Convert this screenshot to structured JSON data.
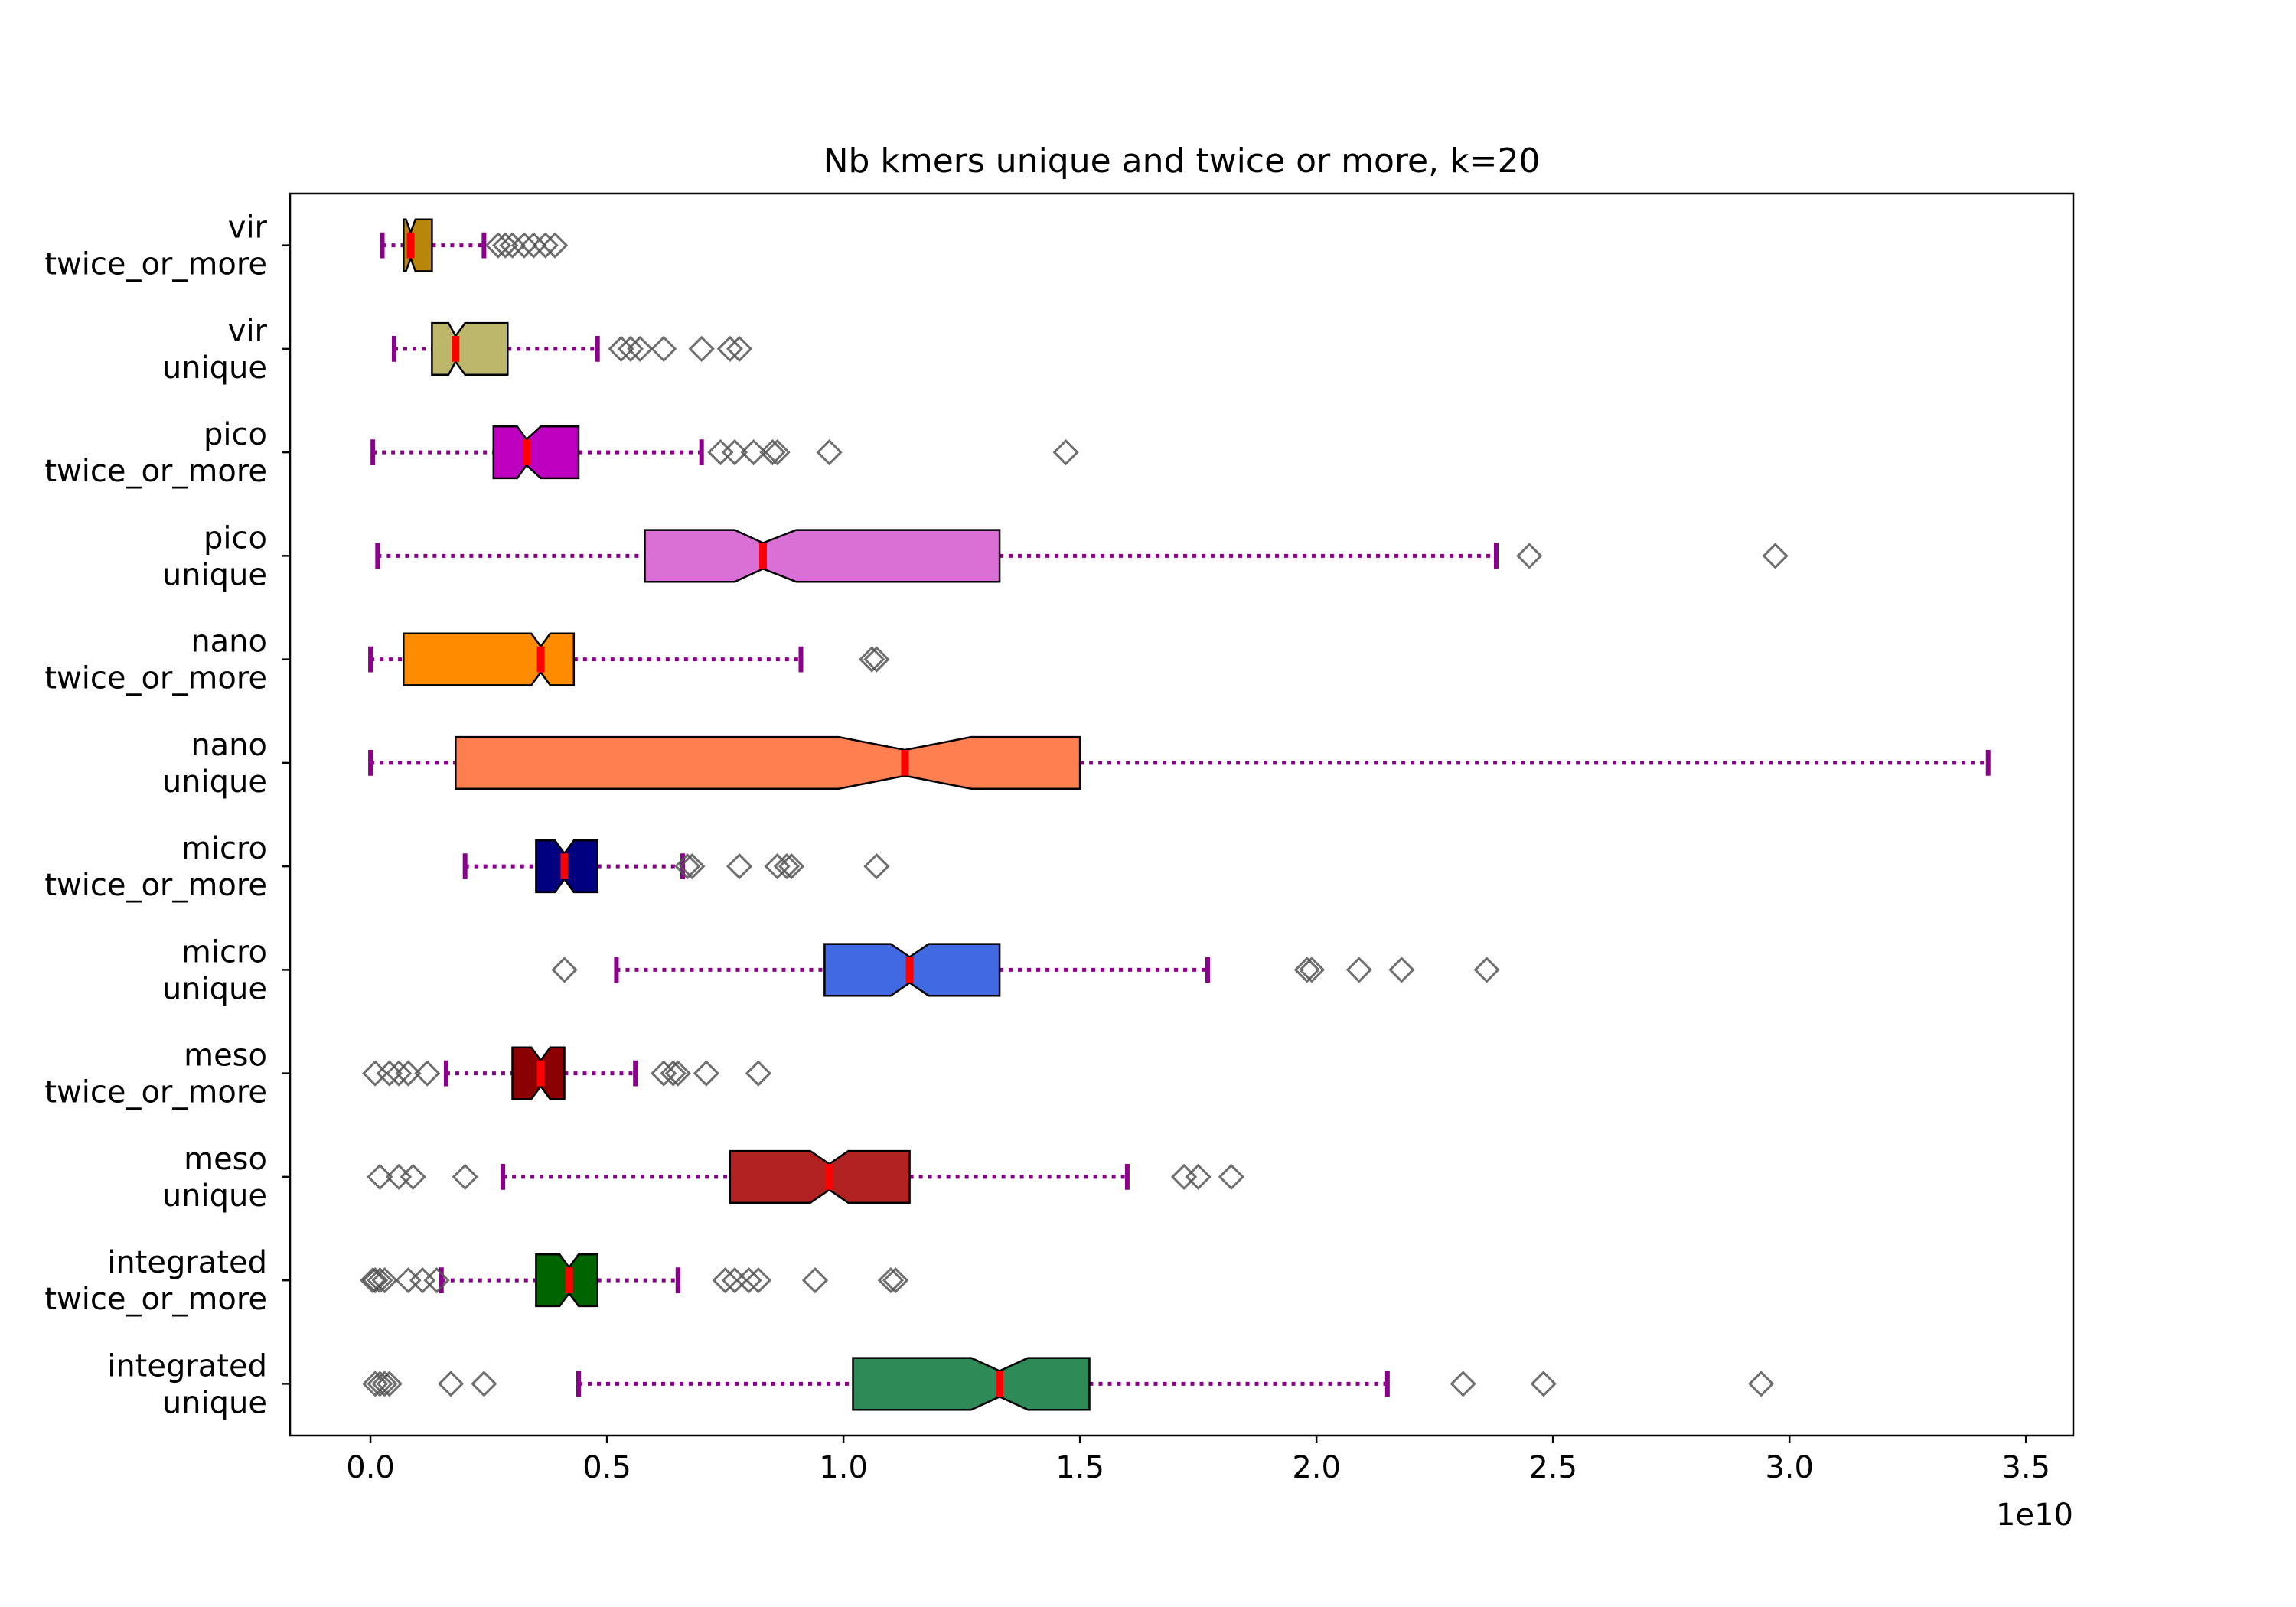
{
  "chart_data": {
    "type": "boxplot",
    "orientation": "horizontal",
    "notched": true,
    "title": "Nb kmers unique and twice or more, k=20",
    "xlabel": "",
    "ylabel": "",
    "x_offset_label": "1e10",
    "x_scale": 10000000000,
    "xlim": [
      -0.17,
      3.6
    ],
    "x_ticks": [
      0.0,
      0.5,
      1.0,
      1.5,
      2.0,
      2.5,
      3.0,
      3.5
    ],
    "x_tick_labels": [
      "0.0",
      "0.5",
      "1.0",
      "1.5",
      "2.0",
      "2.5",
      "3.0",
      "3.5"
    ],
    "grid": false,
    "legend": "none",
    "colors": {
      "whisker": "#8b008b",
      "median": "#ff0000",
      "outlier": "#555555",
      "box_edge": "#000000"
    },
    "series": [
      {
        "label_line1": "vir",
        "label_line2": "twice_or_more",
        "color": "#b8860b",
        "whislo": 0.025,
        "q1": 0.07,
        "med": 0.085,
        "q3": 0.13,
        "whishi": 0.24,
        "notch_lo": 0.075,
        "notch_hi": 0.095,
        "fliers": [
          0.27,
          0.285,
          0.3,
          0.325,
          0.345,
          0.37,
          0.39
        ]
      },
      {
        "label_line1": "vir",
        "label_line2": "unique",
        "color": "#bdb76b",
        "whislo": 0.05,
        "q1": 0.13,
        "med": 0.18,
        "q3": 0.29,
        "whishi": 0.48,
        "notch_lo": 0.165,
        "notch_hi": 0.2,
        "fliers": [
          0.53,
          0.55,
          0.57,
          0.62,
          0.7,
          0.76,
          0.78
        ]
      },
      {
        "label_line1": "pico",
        "label_line2": "twice_or_more",
        "color": "#c000c0",
        "whislo": 0.005,
        "q1": 0.26,
        "med": 0.33,
        "q3": 0.44,
        "whishi": 0.7,
        "notch_lo": 0.31,
        "notch_hi": 0.36,
        "fliers": [
          0.74,
          0.77,
          0.81,
          0.85,
          0.86,
          0.97,
          1.47
        ]
      },
      {
        "label_line1": "pico",
        "label_line2": "unique",
        "color": "#da70d6",
        "whislo": 0.015,
        "q1": 0.58,
        "med": 0.83,
        "q3": 1.33,
        "whishi": 2.38,
        "notch_lo": 0.77,
        "notch_hi": 0.9,
        "fliers": [
          2.45,
          2.97
        ]
      },
      {
        "label_line1": "nano",
        "label_line2": "twice_or_more",
        "color": "#ff8c00",
        "whislo": 0.0,
        "q1": 0.07,
        "med": 0.36,
        "q3": 0.43,
        "whishi": 0.91,
        "notch_lo": 0.34,
        "notch_hi": 0.38,
        "fliers": [
          1.06,
          1.07
        ]
      },
      {
        "label_line1": "nano",
        "label_line2": "unique",
        "color": "#ff7f50",
        "whislo": 0.0,
        "q1": 0.18,
        "med": 1.13,
        "q3": 1.5,
        "whishi": 3.42,
        "notch_lo": 0.99,
        "notch_hi": 1.27,
        "fliers": []
      },
      {
        "label_line1": "micro",
        "label_line2": "twice_or_more",
        "color": "#000080",
        "whislo": 0.2,
        "q1": 0.35,
        "med": 0.41,
        "q3": 0.48,
        "whishi": 0.66,
        "notch_lo": 0.39,
        "notch_hi": 0.43,
        "fliers": [
          0.67,
          0.68,
          0.78,
          0.86,
          0.88,
          0.89,
          1.07
        ]
      },
      {
        "label_line1": "micro",
        "label_line2": "unique",
        "color": "#4169e1",
        "whislo": 0.52,
        "q1": 0.96,
        "med": 1.14,
        "q3": 1.33,
        "whishi": 1.77,
        "notch_lo": 1.1,
        "notch_hi": 1.18,
        "fliers": [
          0.41,
          1.98,
          1.99,
          2.09,
          2.18,
          2.36
        ]
      },
      {
        "label_line1": "meso",
        "label_line2": "twice_or_more",
        "color": "#8b0000",
        "whislo": 0.16,
        "q1": 0.3,
        "med": 0.36,
        "q3": 0.41,
        "whishi": 0.56,
        "notch_lo": 0.34,
        "notch_hi": 0.38,
        "fliers": [
          0.01,
          0.04,
          0.06,
          0.08,
          0.12,
          0.62,
          0.64,
          0.65,
          0.71,
          0.82
        ]
      },
      {
        "label_line1": "meso",
        "label_line2": "unique",
        "color": "#b22222",
        "whislo": 0.28,
        "q1": 0.76,
        "med": 0.97,
        "q3": 1.14,
        "whishi": 1.6,
        "notch_lo": 0.93,
        "notch_hi": 1.01,
        "fliers": [
          0.02,
          0.06,
          0.09,
          0.2,
          1.72,
          1.75,
          1.82
        ]
      },
      {
        "label_line1": "integrated",
        "label_line2": "twice_or_more",
        "color": "#006400",
        "whislo": 0.15,
        "q1": 0.35,
        "med": 0.42,
        "q3": 0.48,
        "whishi": 0.65,
        "notch_lo": 0.4,
        "notch_hi": 0.44,
        "fliers": [
          0.005,
          0.01,
          0.02,
          0.03,
          0.08,
          0.11,
          0.14,
          0.75,
          0.77,
          0.8,
          0.82,
          0.94,
          1.1,
          1.11
        ]
      },
      {
        "label_line1": "integrated",
        "label_line2": "unique",
        "color": "#2e8b57",
        "whislo": 0.44,
        "q1": 1.02,
        "med": 1.33,
        "q3": 1.52,
        "whishi": 2.15,
        "notch_lo": 1.27,
        "notch_hi": 1.39,
        "fliers": [
          0.01,
          0.02,
          0.03,
          0.04,
          0.17,
          0.24,
          2.31,
          2.48,
          2.94
        ]
      }
    ]
  }
}
